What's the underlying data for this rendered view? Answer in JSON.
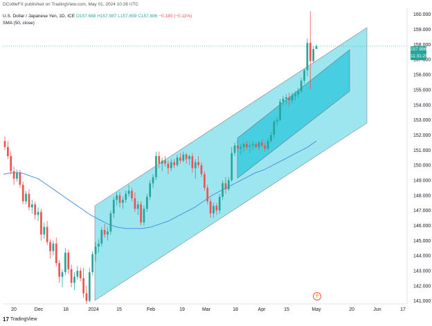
{
  "header": {
    "attribution": "DCottleFX published on TradingView.com, May 01, 2024 10:28 UTC"
  },
  "legend": {
    "symbol": "U.S. Dollar / Japanese Yen, 1D, ICE",
    "open": "O157.688",
    "high": "H157.987",
    "low": "L157.659",
    "close": "C157.886",
    "change": "−0.180 (−0.11%)",
    "sma": "SMA (50, close)"
  },
  "price_badge": {
    "price": "157.886",
    "countdown": "11:31:25"
  },
  "logo": {
    "text": "TradingView"
  },
  "colors": {
    "up": "#26a69a",
    "down": "#ef5350",
    "sma": "#4a90e2",
    "channel": "#4dd0e1",
    "inner_channel": "#00bcd4"
  },
  "chart_data": {
    "type": "candlestick",
    "y_ticks": [
      "160.000",
      "159.000",
      "158.000",
      "157.000",
      "156.000",
      "155.000",
      "154.000",
      "153.000",
      "152.000",
      "151.000",
      "150.000",
      "149.000",
      "148.000",
      "147.000",
      "146.000",
      "145.000",
      "144.000",
      "143.000",
      "142.000",
      "141.000"
    ],
    "x_ticks": [
      "20",
      "Dec",
      "18",
      "2024",
      "15",
      "Feb",
      "19",
      "Mar",
      "18",
      "Apr",
      "15",
      "May",
      "20",
      "Jun",
      "17"
    ],
    "ylim": [
      140.8,
      160.4
    ],
    "candles": [
      [
        151.6,
        151.9,
        151.0,
        151.2
      ],
      [
        151.2,
        151.6,
        150.4,
        150.6
      ],
      [
        150.6,
        150.9,
        149.4,
        149.6
      ],
      [
        149.6,
        149.9,
        148.7,
        149.1
      ],
      [
        149.1,
        149.7,
        148.9,
        149.5
      ],
      [
        149.5,
        149.7,
        148.5,
        148.7
      ],
      [
        148.7,
        148.9,
        147.4,
        147.6
      ],
      [
        147.6,
        148.3,
        147.4,
        148.1
      ],
      [
        148.1,
        148.4,
        147.0,
        147.2
      ],
      [
        147.2,
        147.7,
        146.8,
        147.4
      ],
      [
        147.4,
        147.6,
        146.4,
        146.7
      ],
      [
        146.7,
        147.2,
        146.3,
        146.9
      ],
      [
        146.9,
        147.1,
        145.0,
        145.4
      ],
      [
        145.4,
        146.2,
        145.1,
        145.9
      ],
      [
        145.9,
        146.3,
        144.7,
        144.9
      ],
      [
        144.9,
        145.1,
        143.8,
        144.3
      ],
      [
        144.3,
        145.0,
        144.0,
        144.8
      ],
      [
        144.8,
        145.2,
        143.3,
        143.5
      ],
      [
        143.5,
        143.7,
        142.2,
        142.6
      ],
      [
        142.6,
        143.1,
        141.9,
        142.9
      ],
      [
        142.9,
        144.5,
        142.7,
        144.2
      ],
      [
        144.2,
        144.4,
        142.8,
        143.1
      ],
      [
        143.1,
        143.4,
        141.9,
        142.2
      ],
      [
        142.2,
        142.9,
        141.7,
        142.6
      ],
      [
        142.6,
        143.3,
        142.4,
        143.0
      ],
      [
        143.0,
        143.2,
        142.3,
        142.5
      ],
      [
        142.5,
        143.2,
        141.2,
        141.5
      ],
      [
        141.5,
        142.0,
        140.8,
        141.0
      ],
      [
        141.0,
        143.2,
        140.9,
        142.9
      ],
      [
        142.9,
        144.3,
        142.7,
        144.1
      ],
      [
        144.1,
        144.9,
        143.6,
        144.6
      ],
      [
        144.6,
        145.1,
        144.2,
        144.8
      ],
      [
        144.8,
        145.9,
        144.6,
        145.7
      ],
      [
        145.7,
        146.1,
        145.2,
        145.4
      ],
      [
        145.4,
        145.9,
        145.0,
        145.6
      ],
      [
        145.6,
        147.0,
        145.4,
        146.8
      ],
      [
        146.8,
        147.9,
        146.5,
        147.7
      ],
      [
        147.7,
        148.2,
        147.3,
        148.0
      ],
      [
        148.0,
        148.2,
        147.2,
        147.5
      ],
      [
        147.5,
        147.9,
        147.1,
        147.7
      ],
      [
        147.7,
        148.3,
        147.5,
        148.1
      ],
      [
        148.1,
        148.7,
        147.9,
        148.3
      ],
      [
        148.3,
        148.5,
        147.6,
        147.8
      ],
      [
        147.8,
        148.2,
        146.9,
        147.1
      ],
      [
        147.1,
        147.6,
        146.7,
        147.4
      ],
      [
        147.4,
        147.6,
        146.0,
        146.2
      ],
      [
        146.2,
        147.3,
        146.0,
        147.1
      ],
      [
        147.1,
        148.1,
        146.9,
        147.9
      ],
      [
        147.9,
        149.0,
        147.7,
        148.8
      ],
      [
        148.8,
        149.4,
        148.5,
        149.2
      ],
      [
        149.2,
        150.9,
        149.0,
        150.6
      ],
      [
        150.6,
        150.9,
        149.8,
        150.1
      ],
      [
        150.1,
        150.5,
        149.6,
        150.3
      ],
      [
        150.3,
        150.6,
        149.9,
        150.1
      ],
      [
        150.1,
        150.3,
        149.4,
        149.8
      ],
      [
        149.8,
        150.4,
        149.6,
        150.2
      ],
      [
        150.2,
        150.4,
        149.8,
        150.0
      ],
      [
        150.0,
        150.7,
        149.9,
        150.5
      ],
      [
        150.5,
        150.8,
        150.1,
        150.3
      ],
      [
        150.3,
        150.9,
        150.2,
        150.7
      ],
      [
        150.7,
        150.8,
        150.1,
        150.4
      ],
      [
        150.4,
        150.7,
        150.0,
        150.6
      ],
      [
        150.6,
        150.8,
        149.5,
        149.8
      ],
      [
        149.8,
        150.4,
        149.1,
        150.2
      ],
      [
        150.2,
        150.6,
        149.8,
        150.0
      ],
      [
        150.0,
        150.2,
        149.2,
        149.4
      ],
      [
        149.4,
        149.6,
        148.3,
        148.5
      ],
      [
        148.5,
        148.7,
        147.4,
        147.6
      ],
      [
        147.6,
        147.8,
        146.5,
        146.8
      ],
      [
        146.8,
        147.5,
        146.5,
        147.3
      ],
      [
        147.3,
        147.5,
        146.7,
        147.0
      ],
      [
        147.0,
        148.1,
        146.8,
        147.9
      ],
      [
        147.9,
        149.0,
        147.7,
        148.8
      ],
      [
        148.8,
        149.2,
        148.1,
        148.4
      ],
      [
        148.4,
        149.2,
        148.3,
        149.0
      ],
      [
        149.0,
        151.2,
        148.9,
        150.8
      ],
      [
        150.8,
        151.5,
        150.6,
        151.3
      ],
      [
        151.3,
        151.6,
        150.9,
        151.1
      ],
      [
        151.1,
        151.4,
        150.7,
        151.2
      ],
      [
        151.2,
        151.5,
        150.9,
        151.4
      ],
      [
        151.4,
        151.6,
        151.0,
        151.2
      ],
      [
        151.2,
        151.5,
        150.8,
        151.3
      ],
      [
        151.3,
        151.6,
        151.0,
        151.4
      ],
      [
        151.4,
        151.5,
        151.1,
        151.2
      ],
      [
        151.2,
        151.6,
        151.0,
        151.5
      ],
      [
        151.5,
        151.7,
        151.2,
        151.3
      ],
      [
        151.3,
        151.5,
        150.9,
        151.1
      ],
      [
        151.1,
        151.8,
        151.0,
        151.6
      ],
      [
        151.6,
        152.2,
        151.5,
        152.0
      ],
      [
        152.0,
        153.0,
        151.8,
        152.9
      ],
      [
        152.9,
        153.2,
        152.6,
        153.0
      ],
      [
        153.0,
        154.4,
        152.9,
        154.2
      ],
      [
        154.2,
        154.6,
        153.9,
        154.4
      ],
      [
        154.4,
        154.7,
        154.0,
        154.5
      ],
      [
        154.5,
        154.8,
        153.9,
        154.3
      ],
      [
        154.3,
        154.8,
        154.1,
        154.6
      ],
      [
        154.6,
        154.9,
        154.3,
        154.7
      ],
      [
        154.7,
        155.1,
        154.5,
        154.9
      ],
      [
        154.9,
        155.8,
        154.8,
        155.6
      ],
      [
        155.6,
        156.4,
        155.4,
        156.3
      ],
      [
        156.3,
        158.4,
        155.9,
        158.1
      ],
      [
        158.1,
        160.2,
        155.0,
        156.9
      ],
      [
        156.9,
        157.9,
        156.8,
        157.7
      ],
      [
        157.7,
        158.0,
        157.7,
        157.9
      ]
    ],
    "sma": [
      149.4,
      149.5,
      149.5,
      149.3,
      149.1,
      148.7,
      148.3,
      147.9,
      147.5,
      147.1,
      146.7,
      146.4,
      146.1,
      145.9,
      145.8,
      145.8,
      145.8,
      145.9,
      146.1,
      146.3,
      146.6,
      146.9,
      147.2,
      147.6,
      148.0,
      148.3,
      148.6,
      148.9,
      149.2,
      149.5,
      149.7,
      150.0,
      150.3,
      150.6,
      150.9,
      151.2,
      151.6
    ],
    "channel_outer": {
      "start": [
        2024.0,
        146.8,
        141.0
      ],
      "end": [
        2024.33,
        159.2,
        152.8
      ]
    },
    "channel_inner": {
      "start": [
        2024.21,
        152.1,
        148.2
      ],
      "end": [
        2024.33,
        157.9,
        154.9
      ]
    }
  }
}
